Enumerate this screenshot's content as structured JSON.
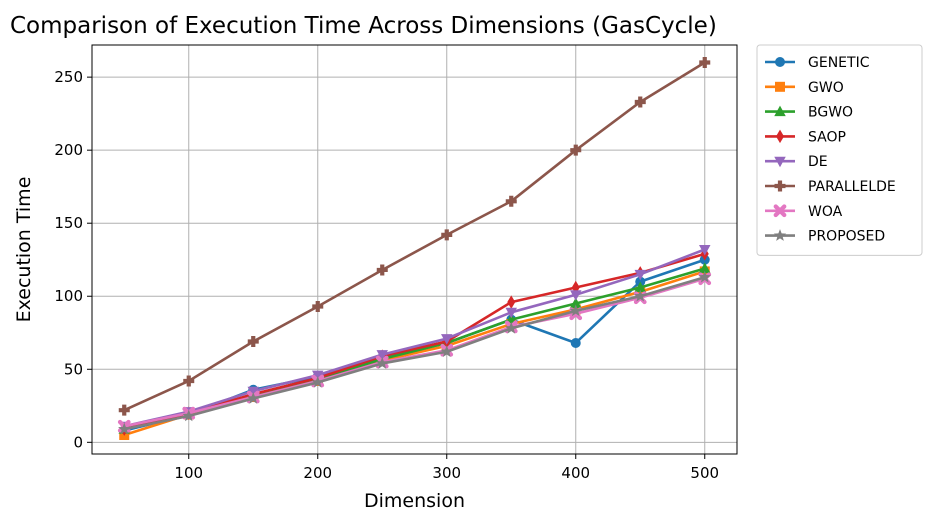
{
  "chart_data": {
    "type": "line",
    "title": "Comparison of Execution Time Across Dimensions (GasCycle)",
    "xlabel": "Dimension",
    "ylabel": "Execution Time",
    "x": [
      50,
      100,
      150,
      200,
      250,
      300,
      350,
      400,
      450,
      500
    ],
    "xlim": [
      25,
      525
    ],
    "ylim": [
      -8,
      272
    ],
    "xticks": [
      100,
      200,
      300,
      400,
      500
    ],
    "yticks": [
      0,
      50,
      100,
      150,
      200,
      250
    ],
    "grid": true,
    "legend_position": "outside-right-top",
    "series": [
      {
        "name": "GENETIC",
        "color": "#1f77b4",
        "marker": "circle",
        "values": [
          8,
          19,
          36,
          45,
          58,
          68,
          84,
          68,
          110,
          125
        ]
      },
      {
        "name": "GWO",
        "color": "#ff7f0e",
        "marker": "square",
        "values": [
          5,
          19,
          31,
          42,
          56,
          66,
          81,
          91,
          103,
          117
        ]
      },
      {
        "name": "BGWO",
        "color": "#2ca02c",
        "marker": "triangle-up",
        "values": [
          9,
          20,
          32,
          43,
          57,
          68,
          84,
          95,
          106,
          119
        ]
      },
      {
        "name": "SAOP",
        "color": "#d62728",
        "marker": "diamond",
        "values": [
          9,
          20,
          33,
          44,
          59,
          69,
          96,
          106,
          116,
          129
        ]
      },
      {
        "name": "DE",
        "color": "#9467bd",
        "marker": "triangle-down",
        "values": [
          11,
          21,
          35,
          46,
          60,
          71,
          89,
          101,
          115,
          132
        ]
      },
      {
        "name": "PARALLELDE",
        "color": "#8c564b",
        "marker": "plus",
        "values": [
          22,
          42,
          69,
          93,
          118,
          142,
          165,
          200,
          233,
          260
        ]
      },
      {
        "name": "WOA",
        "color": "#e377c2",
        "marker": "x",
        "values": [
          11,
          20,
          31,
          42,
          55,
          63,
          79,
          88,
          99,
          112
        ]
      },
      {
        "name": "PROPOSED",
        "color": "#7f7f7f",
        "marker": "star",
        "values": [
          9,
          18,
          30,
          41,
          54,
          62,
          78,
          90,
          100,
          113
        ]
      }
    ]
  }
}
